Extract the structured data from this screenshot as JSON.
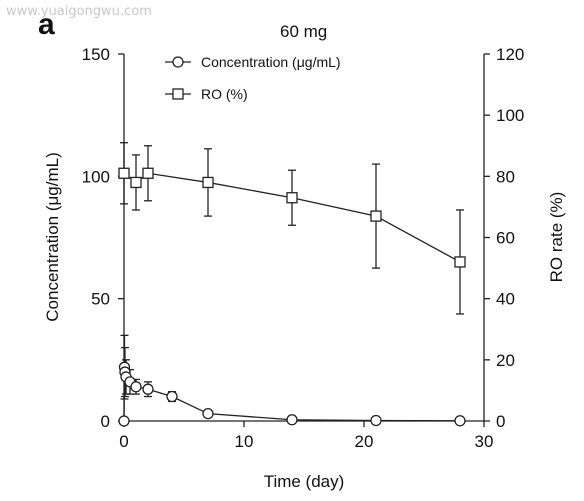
{
  "watermark": "www.yuaigongwu.com",
  "panel_letter": "a",
  "chart_data": {
    "type": "line",
    "title": "60 mg",
    "xlabel": "Time (day)",
    "ylabel_left": "Concentration (μg/mL)",
    "ylabel_right": "RO rate (%)",
    "xlim": [
      0,
      30
    ],
    "ylim_left": [
      0,
      150
    ],
    "ylim_right": [
      0,
      120
    ],
    "xticks": [
      0,
      10,
      20,
      30
    ],
    "yticks_left": [
      0,
      50,
      100,
      150
    ],
    "yticks_right": [
      0,
      20,
      40,
      60,
      80,
      100,
      120
    ],
    "grid": false,
    "legend_position": "top-center",
    "series": [
      {
        "name": "Concentration (μg/mL)",
        "marker": "circle",
        "axis": "left",
        "x": [
          0,
          0.04,
          0.08,
          0.17,
          0.5,
          1,
          2,
          4,
          7,
          14,
          21,
          28
        ],
        "y": [
          0,
          22,
          20,
          18,
          16,
          14,
          13,
          10,
          3,
          0.5,
          0.2,
          0.1
        ],
        "err": [
          0,
          13,
          10,
          7,
          5,
          3,
          3,
          2,
          1,
          0.3,
          0.1,
          0.1
        ]
      },
      {
        "name": "RO (%)",
        "marker": "square",
        "axis": "right",
        "x": [
          0,
          1,
          2,
          7,
          14,
          21,
          28
        ],
        "y": [
          81,
          78,
          81,
          78,
          73,
          67,
          52
        ],
        "err": [
          10,
          9,
          9,
          11,
          9,
          17,
          17
        ]
      }
    ]
  }
}
